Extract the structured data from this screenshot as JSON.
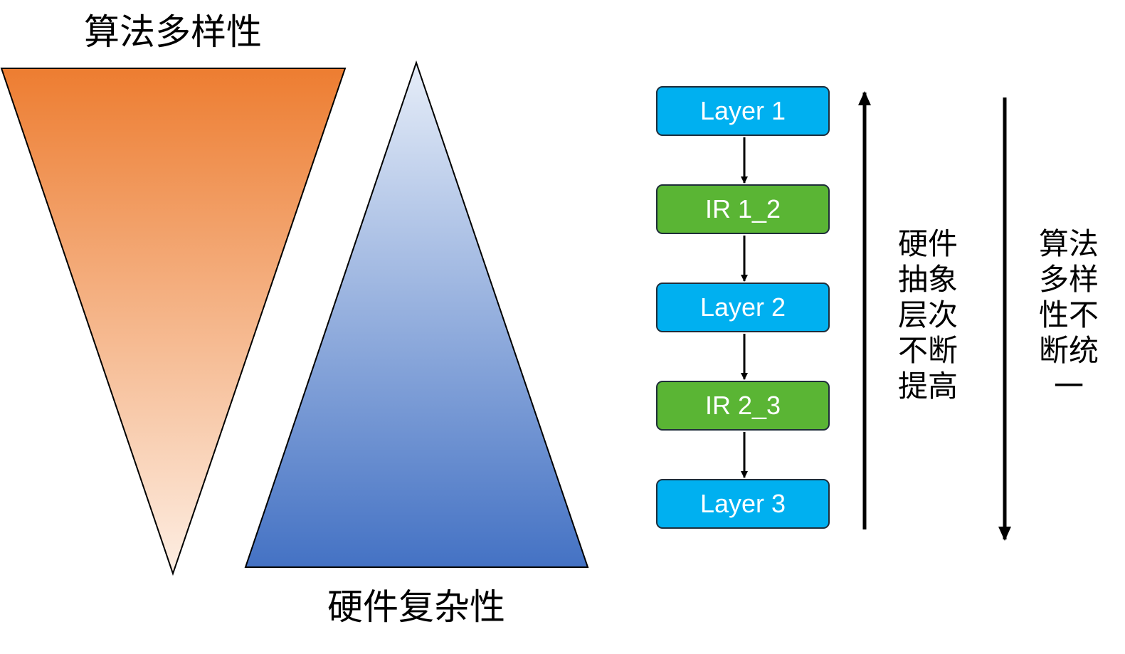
{
  "left": {
    "algo_title": "算法多样性",
    "hw_title": "硬件复杂性",
    "orange_top": "#ed7d31",
    "orange_bottom": "#fdeee3",
    "blue_top": "#e6edf8",
    "blue_bottom": "#4472c4"
  },
  "stack": {
    "boxes": [
      {
        "label": "Layer 1",
        "kind": "layer"
      },
      {
        "label": "IR 1_2",
        "kind": "ir"
      },
      {
        "label": "Layer 2",
        "kind": "layer"
      },
      {
        "label": "IR 2_3",
        "kind": "ir"
      },
      {
        "label": "Layer 3",
        "kind": "layer"
      }
    ],
    "layer_color": "#00b0f0",
    "ir_color": "#5ab534"
  },
  "up_arrow": {
    "lines": [
      "硬件",
      "抽象",
      "层次",
      "不断",
      "提高"
    ]
  },
  "down_arrow": {
    "lines": [
      "算法",
      "多样",
      "性不",
      "断统",
      "一"
    ]
  }
}
